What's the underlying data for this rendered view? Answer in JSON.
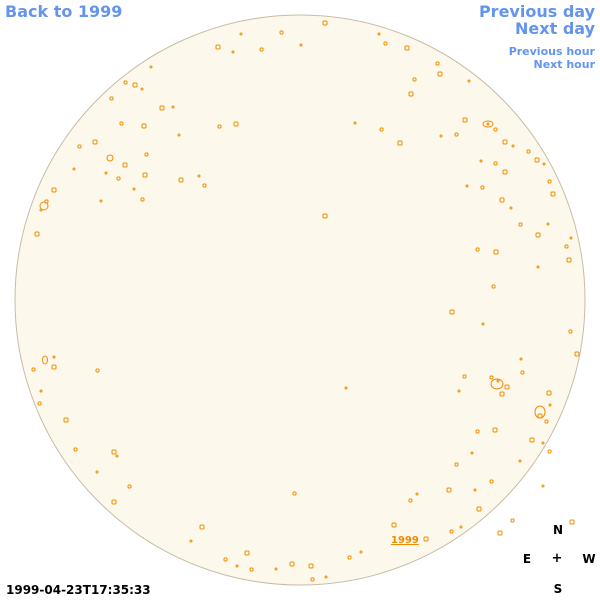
{
  "nav": {
    "back_label": "Back to 1999",
    "prev_day_label": "Previous day",
    "next_day_label": "Next day",
    "prev_hour_label": "Previous hour",
    "next_hour_label": "Next hour"
  },
  "timestamp": "1999-04-23T17:35:33",
  "disk_label": "1999",
  "compass": {
    "north": "N",
    "east": "E",
    "center": "+",
    "west": "W",
    "south": "S"
  },
  "colors": {
    "link": "#6495ed",
    "disk_fill": "#fdf8ec",
    "disk_stroke": "#c8bca8",
    "feature": "#f08c00"
  }
}
